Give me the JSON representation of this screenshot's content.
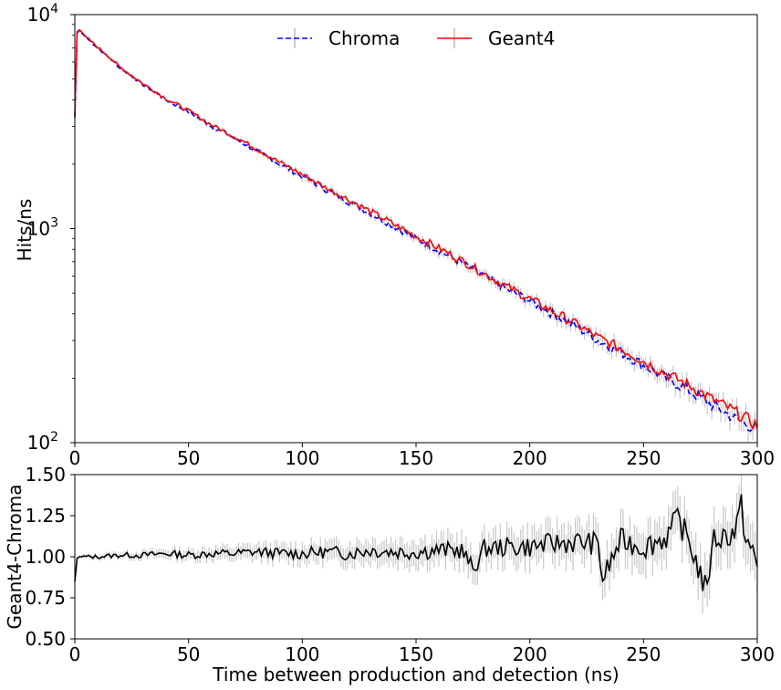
{
  "chart_data": [
    {
      "type": "line",
      "panel": "top",
      "xlabel": "",
      "ylabel": "Hits/ns",
      "xlim": [
        0,
        300
      ],
      "ylim": [
        100,
        10000
      ],
      "yscale": "log",
      "x_ticks": [
        "0",
        "50",
        "100",
        "150",
        "200",
        "250",
        "300"
      ],
      "y_ticks": [
        {
          "base": "10",
          "exp": "2"
        },
        {
          "base": "10",
          "exp": "3"
        },
        {
          "base": "10",
          "exp": "4"
        }
      ],
      "legend": {
        "placement": "top-center",
        "entries": [
          "Chroma",
          "Geant4"
        ]
      },
      "grid": false,
      "series": [
        {
          "name": "Chroma",
          "style": "dashed",
          "color": "#0000ff",
          "error_bars": true,
          "x": [
            0,
            0.5,
            1,
            1.5,
            2,
            3,
            5,
            10,
            20,
            30,
            40,
            50,
            60,
            70,
            80,
            90,
            100,
            110,
            120,
            130,
            140,
            150,
            160,
            170,
            180,
            190,
            200,
            210,
            220,
            230,
            240,
            250,
            260,
            270,
            280,
            290,
            300
          ],
          "y": [
            3300,
            7000,
            8200,
            8500,
            8400,
            8200,
            7800,
            7000,
            5600,
            4700,
            4000,
            3500,
            3000,
            2650,
            2300,
            2000,
            1750,
            1530,
            1340,
            1180,
            1030,
            900,
            790,
            690,
            600,
            520,
            460,
            400,
            350,
            300,
            265,
            230,
            200,
            175,
            150,
            130,
            115
          ]
        },
        {
          "name": "Geant4",
          "style": "solid",
          "color": "#ff0000",
          "error_bars": true,
          "x": [
            0,
            0.5,
            1,
            1.5,
            2,
            3,
            5,
            10,
            20,
            30,
            40,
            50,
            60,
            70,
            80,
            90,
            100,
            110,
            120,
            130,
            140,
            150,
            160,
            170,
            180,
            190,
            200,
            210,
            220,
            230,
            240,
            250,
            260,
            270,
            280,
            290,
            300
          ],
          "y": [
            3400,
            7100,
            8300,
            8600,
            8500,
            8300,
            7850,
            7050,
            5650,
            4750,
            4050,
            3550,
            3050,
            2700,
            2350,
            2040,
            1790,
            1560,
            1370,
            1200,
            1050,
            920,
            810,
            710,
            615,
            535,
            470,
            410,
            360,
            310,
            275,
            240,
            210,
            185,
            160,
            140,
            120
          ]
        }
      ]
    },
    {
      "type": "line",
      "panel": "bottom",
      "xlabel": "Time between production and detection (ns)",
      "ylabel": "Geant4-Chroma",
      "xlim": [
        0,
        300
      ],
      "ylim": [
        0.5,
        1.5
      ],
      "x_ticks": [
        "0",
        "50",
        "100",
        "150",
        "200",
        "250",
        "300"
      ],
      "y_ticks": [
        "0.50",
        "0.75",
        "1.00",
        "1.25",
        "1.50"
      ],
      "grid": false,
      "series": [
        {
          "name": "",
          "style": "solid",
          "color": "#000000",
          "error_bars": true,
          "x": [
            0,
            1,
            2,
            5,
            10,
            20,
            30,
            40,
            50,
            60,
            70,
            80,
            90,
            100,
            110,
            120,
            130,
            140,
            150,
            160,
            170,
            175,
            180,
            190,
            200,
            210,
            220,
            230,
            232,
            240,
            250,
            260,
            265,
            270,
            278,
            280,
            290,
            293,
            295,
            300
          ],
          "y": [
            0.85,
            0.99,
            1.0,
            1.0,
            1.0,
            1.01,
            1.01,
            1.02,
            1.01,
            1.02,
            1.02,
            1.03,
            1.02,
            1.02,
            1.03,
            1.02,
            1.04,
            1.03,
            1.03,
            1.04,
            1.04,
            0.92,
            1.05,
            1.06,
            1.06,
            1.08,
            1.09,
            1.08,
            0.86,
            1.1,
            1.06,
            1.12,
            1.23,
            1.1,
            0.77,
            1.1,
            1.15,
            1.3,
            1.12,
            0.94
          ]
        }
      ]
    }
  ]
}
